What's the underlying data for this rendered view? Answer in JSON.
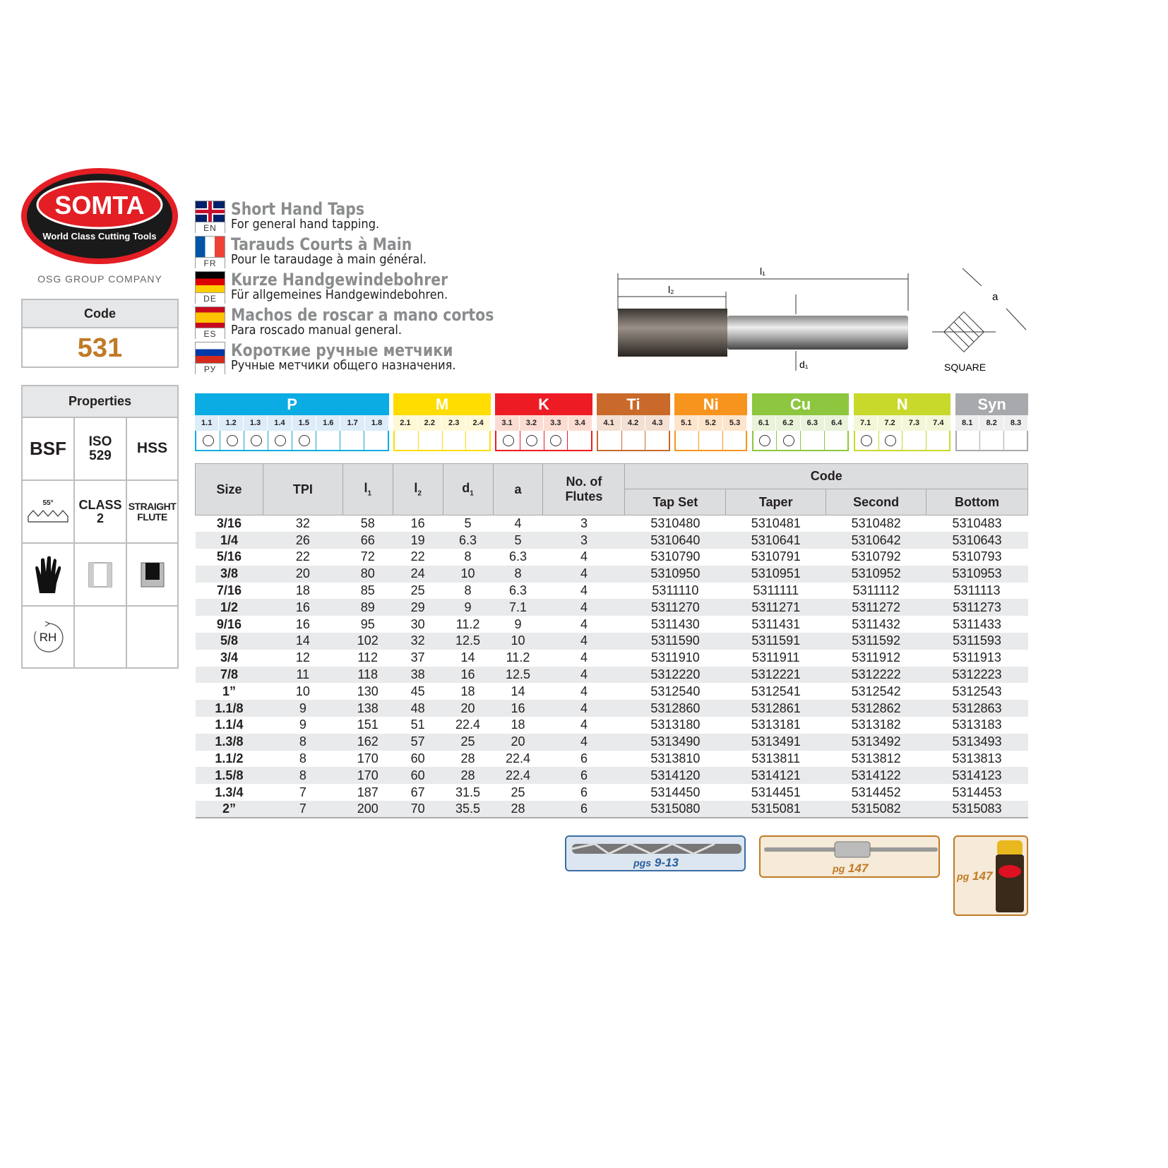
{
  "brand": {
    "name": "SOMTA",
    "tagline": "World Class Cutting Tools",
    "group": "OSG GROUP COMPANY"
  },
  "code": {
    "label": "Code",
    "value": "531"
  },
  "properties": {
    "label": "Properties",
    "thread": "BSF",
    "standard": "ISO 529",
    "material": "HSS",
    "angle": "55°",
    "class": "CLASS 2",
    "flute": "STRAIGHT FLUTE",
    "rotation": "RH"
  },
  "languages": [
    {
      "code": "EN",
      "title": "Short Hand Taps",
      "subtitle": "For general hand tapping."
    },
    {
      "code": "FR",
      "title": "Tarauds Courts à Main",
      "subtitle": "Pour le taraudage à main général."
    },
    {
      "code": "DE",
      "title": "Kurze Handgewindebohrer",
      "subtitle": "Für allgemeines Handgewindebohren."
    },
    {
      "code": "ES",
      "title": "Machos de roscar a mano cortos",
      "subtitle": "Para roscado manual general."
    },
    {
      "code": "РУ",
      "title": "Короткие ручные метчики",
      "subtitle": "Ручные метчики общего назначения."
    }
  ],
  "diagram": {
    "l1": "l1",
    "l2": "l2",
    "d1": "d1",
    "a": "a",
    "square": "SQUARE"
  },
  "materials": [
    {
      "group": "P",
      "color": "#0aace3",
      "light": "#dcedf9",
      "cells": [
        "1.1",
        "1.2",
        "1.3",
        "1.4",
        "1.5",
        "1.6",
        "1.7",
        "1.8"
      ],
      "suitable": [
        1,
        1,
        1,
        1,
        1,
        0,
        0,
        0
      ]
    },
    {
      "group": "M",
      "color": "#ffdd00",
      "light": "#fff8d6",
      "cells": [
        "2.1",
        "2.2",
        "2.3",
        "2.4"
      ],
      "suitable": [
        0,
        0,
        0,
        0
      ]
    },
    {
      "group": "K",
      "color": "#ed1c24",
      "light": "#fcdcd2",
      "cells": [
        "3.1",
        "3.2",
        "3.3",
        "3.4"
      ],
      "suitable": [
        1,
        1,
        1,
        0
      ]
    },
    {
      "group": "Ti",
      "color": "#c9692a",
      "light": "#f3e0d2",
      "cells": [
        "4.1",
        "4.2",
        "4.3"
      ],
      "suitable": [
        0,
        0,
        0
      ]
    },
    {
      "group": "Ni",
      "color": "#f7941d",
      "light": "#fde5cc",
      "cells": [
        "5.1",
        "5.2",
        "5.3"
      ],
      "suitable": [
        0,
        0,
        0
      ]
    },
    {
      "group": "Cu",
      "color": "#8dc63f",
      "light": "#e8f3d9",
      "cells": [
        "6.1",
        "6.2",
        "6.3",
        "6.4"
      ],
      "suitable": [
        1,
        1,
        0,
        0
      ]
    },
    {
      "group": "N",
      "color": "#c8d92b",
      "light": "#f4f7d7",
      "cells": [
        "7.1",
        "7.2",
        "7.3",
        "7.4"
      ],
      "suitable": [
        1,
        1,
        0,
        0
      ]
    },
    {
      "group": "Syn",
      "color": "#a7a9ac",
      "light": "#eeeeef",
      "cells": [
        "8.1",
        "8.2",
        "8.3"
      ],
      "suitable": [
        0,
        0,
        0
      ]
    }
  ],
  "table": {
    "headers": {
      "size": "Size",
      "tpi": "TPI",
      "l1": "l",
      "l2": "l",
      "d1": "d",
      "a": "a",
      "flutes": "No. of Flutes",
      "code": "Code",
      "tapset": "Tap Set",
      "taper": "Taper",
      "second": "Second",
      "bottom": "Bottom"
    },
    "rows": [
      [
        "3/16",
        "32",
        "58",
        "16",
        "5",
        "4",
        "3",
        "5310480",
        "5310481",
        "5310482",
        "5310483"
      ],
      [
        "1/4",
        "26",
        "66",
        "19",
        "6.3",
        "5",
        "3",
        "5310640",
        "5310641",
        "5310642",
        "5310643"
      ],
      [
        "5/16",
        "22",
        "72",
        "22",
        "8",
        "6.3",
        "4",
        "5310790",
        "5310791",
        "5310792",
        "5310793"
      ],
      [
        "3/8",
        "20",
        "80",
        "24",
        "10",
        "8",
        "4",
        "5310950",
        "5310951",
        "5310952",
        "5310953"
      ],
      [
        "7/16",
        "18",
        "85",
        "25",
        "8",
        "6.3",
        "4",
        "5311110",
        "5311111",
        "5311112",
        "5311113"
      ],
      [
        "1/2",
        "16",
        "89",
        "29",
        "9",
        "7.1",
        "4",
        "5311270",
        "5311271",
        "5311272",
        "5311273"
      ],
      [
        "9/16",
        "16",
        "95",
        "30",
        "11.2",
        "9",
        "4",
        "5311430",
        "5311431",
        "5311432",
        "5311433"
      ],
      [
        "5/8",
        "14",
        "102",
        "32",
        "12.5",
        "10",
        "4",
        "5311590",
        "5311591",
        "5311592",
        "5311593"
      ],
      [
        "3/4",
        "12",
        "112",
        "37",
        "14",
        "11.2",
        "4",
        "5311910",
        "5311911",
        "5311912",
        "5311913"
      ],
      [
        "7/8",
        "11",
        "118",
        "38",
        "16",
        "12.5",
        "4",
        "5312220",
        "5312221",
        "5312222",
        "5312223"
      ],
      [
        "1”",
        "10",
        "130",
        "45",
        "18",
        "14",
        "4",
        "5312540",
        "5312541",
        "5312542",
        "5312543"
      ],
      [
        "1.1/8",
        "9",
        "138",
        "48",
        "20",
        "16",
        "4",
        "5312860",
        "5312861",
        "5312862",
        "5312863"
      ],
      [
        "1.1/4",
        "9",
        "151",
        "51",
        "22.4",
        "18",
        "4",
        "5313180",
        "5313181",
        "5313182",
        "5313183"
      ],
      [
        "1.3/8",
        "8",
        "162",
        "57",
        "25",
        "20",
        "4",
        "5313490",
        "5313491",
        "5313492",
        "5313493"
      ],
      [
        "1.1/2",
        "8",
        "170",
        "60",
        "28",
        "22.4",
        "6",
        "5313810",
        "5313811",
        "5313812",
        "5313813"
      ],
      [
        "1.5/8",
        "8",
        "170",
        "60",
        "28",
        "22.4",
        "6",
        "5314120",
        "5314121",
        "5314122",
        "5314123"
      ],
      [
        "1.3/4",
        "7",
        "187",
        "67",
        "31.5",
        "25",
        "6",
        "5314450",
        "5314451",
        "5314452",
        "5314453"
      ],
      [
        "2”",
        "7",
        "200",
        "70",
        "35.5",
        "28",
        "6",
        "5315080",
        "5315081",
        "5315082",
        "5315083"
      ]
    ]
  },
  "accessories": [
    {
      "name": "drill",
      "prefix": "pgs",
      "pages": "9-13"
    },
    {
      "name": "tap-wrench",
      "prefix": "pg",
      "pages": "147"
    },
    {
      "name": "cutting-fluid",
      "prefix": "pg",
      "pages": "147"
    }
  ]
}
